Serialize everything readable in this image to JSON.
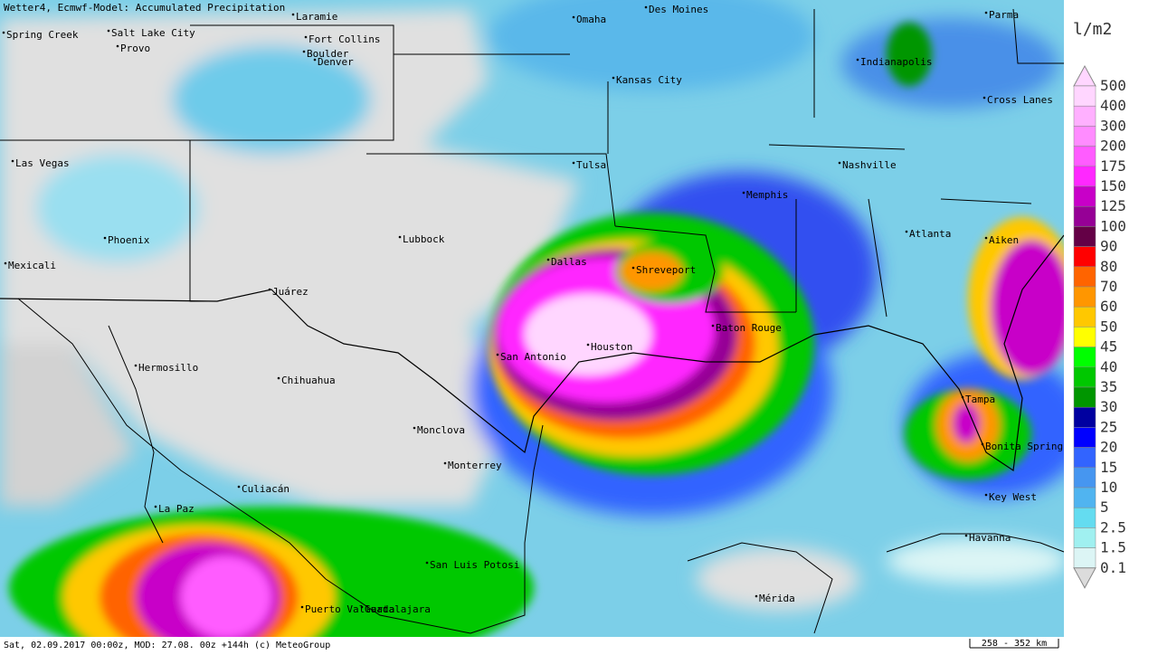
{
  "header": {
    "title": "Wetter4, Ecmwf-Model: Accumulated Precipitation"
  },
  "legend": {
    "unit": "l/m2",
    "items": [
      {
        "label": "500",
        "color": "#ffd6ff"
      },
      {
        "label": "400",
        "color": "#ffb0ff"
      },
      {
        "label": "300",
        "color": "#ff8cff"
      },
      {
        "label": "200",
        "color": "#ff5cff"
      },
      {
        "label": "175",
        "color": "#ff28ff"
      },
      {
        "label": "150",
        "color": "#c800c8"
      },
      {
        "label": "125",
        "color": "#960096"
      },
      {
        "label": "100",
        "color": "#640046"
      },
      {
        "label": "90",
        "color": "#ff0000"
      },
      {
        "label": "80",
        "color": "#ff6400"
      },
      {
        "label": "70",
        "color": "#ff9600"
      },
      {
        "label": "60",
        "color": "#ffc800"
      },
      {
        "label": "50",
        "color": "#ffff00"
      },
      {
        "label": "45",
        "color": "#00ff00"
      },
      {
        "label": "40",
        "color": "#00c800"
      },
      {
        "label": "35",
        "color": "#009600"
      },
      {
        "label": "30",
        "color": "#0000a0"
      },
      {
        "label": "25",
        "color": "#0000ff"
      },
      {
        "label": "20",
        "color": "#3264ff"
      },
      {
        "label": "15",
        "color": "#4696f0"
      },
      {
        "label": "10",
        "color": "#50b4f0"
      },
      {
        "label": "5",
        "color": "#64dcf0"
      },
      {
        "label": "2.5",
        "color": "#a0f0f0"
      },
      {
        "label": "1.5",
        "color": "#dcf5f5"
      },
      {
        "label": "0.1",
        "color": "#dcdcdc"
      }
    ]
  },
  "cities": [
    "Spring Creek",
    "Salt Lake City",
    "Provo",
    "Laramie",
    "Fort Collins",
    "Boulder",
    "Denver",
    "Omaha",
    "Des Moines",
    "Parma",
    "Indianapolis",
    "Kansas City",
    "Cross Lanes",
    "Las Vegas",
    "Tulsa",
    "Nashville",
    "Memphis",
    "Atlanta",
    "Aiken",
    "Phoenix",
    "Lubbock",
    "Dallas",
    "Shreveport",
    "Mexicali",
    "Juárez",
    "Baton Rouge",
    "Houston",
    "San Antonio",
    "Hermosillo",
    "Chihuahua",
    "Tampa",
    "Monclova",
    "Bonita Springs",
    "Monterrey",
    "Culiacán",
    "Key West",
    "La Paz",
    "Havanna",
    "San Luis Potosi",
    "Mérida",
    "Puerto Vallarta",
    "Guadalajara"
  ],
  "footer": {
    "info": "Sat, 02.09.2017 00:00z, MOD: 27.08. 00z +144h (c) MeteoGroup",
    "scale": "258 - 352 km"
  }
}
